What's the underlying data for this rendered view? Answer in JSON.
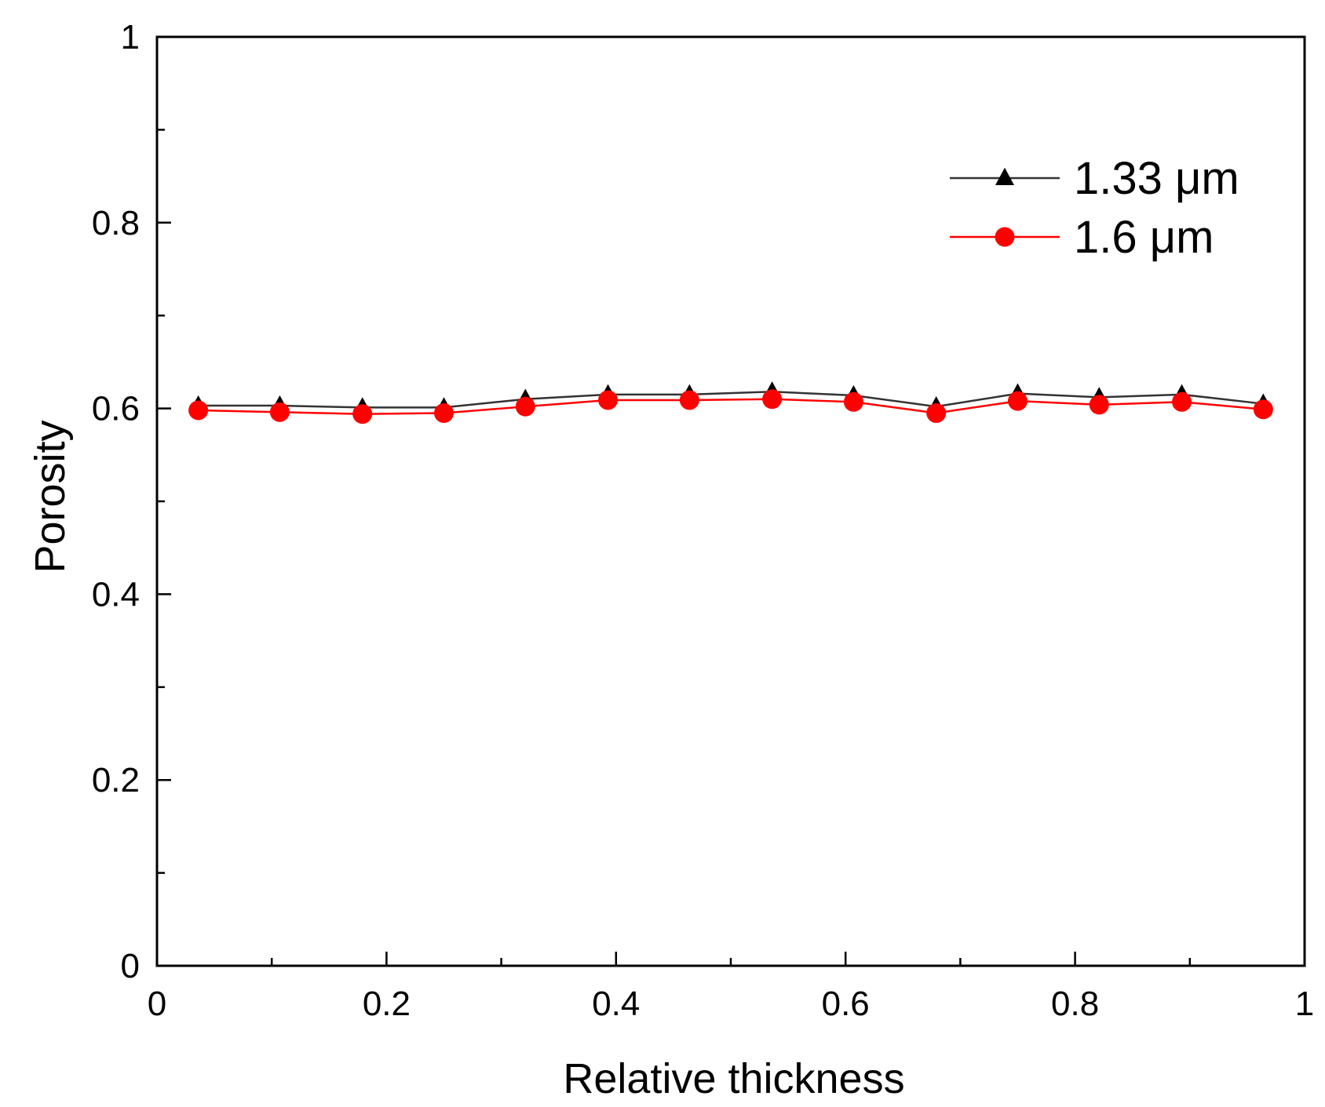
{
  "chart_data": {
    "type": "line",
    "title": "",
    "xlabel": "Relative thickness",
    "ylabel": "Porosity",
    "xlim": [
      0,
      1
    ],
    "ylim": [
      0,
      1
    ],
    "grid": false,
    "legend_position": "top-right",
    "x": [
      0.036,
      0.107,
      0.179,
      0.25,
      0.321,
      0.393,
      0.464,
      0.536,
      0.607,
      0.679,
      0.75,
      0.821,
      0.893,
      0.964
    ],
    "x_ticks": [
      0,
      0.2,
      0.4,
      0.6,
      0.8,
      1
    ],
    "x_tick_labels": [
      "0",
      "0.2",
      "0.4",
      "0.6",
      "0.8",
      "1"
    ],
    "y_ticks": [
      0,
      0.2,
      0.4,
      0.6,
      0.8,
      1
    ],
    "y_tick_labels": [
      "0",
      "0.2",
      "0.4",
      "0.6",
      "0.8",
      "1"
    ],
    "series": [
      {
        "name": "1.33 μm",
        "color": "#000000",
        "line_color": "#333333",
        "marker": "triangle",
        "values": [
          0.603,
          0.603,
          0.601,
          0.601,
          0.61,
          0.615,
          0.615,
          0.618,
          0.614,
          0.602,
          0.616,
          0.612,
          0.615,
          0.605
        ]
      },
      {
        "name": "1.6 μm",
        "color": "#ff0000",
        "line_color": "#ff0000",
        "marker": "circle",
        "values": [
          0.598,
          0.596,
          0.594,
          0.595,
          0.602,
          0.609,
          0.609,
          0.61,
          0.607,
          0.595,
          0.608,
          0.604,
          0.607,
          0.599
        ]
      }
    ]
  }
}
